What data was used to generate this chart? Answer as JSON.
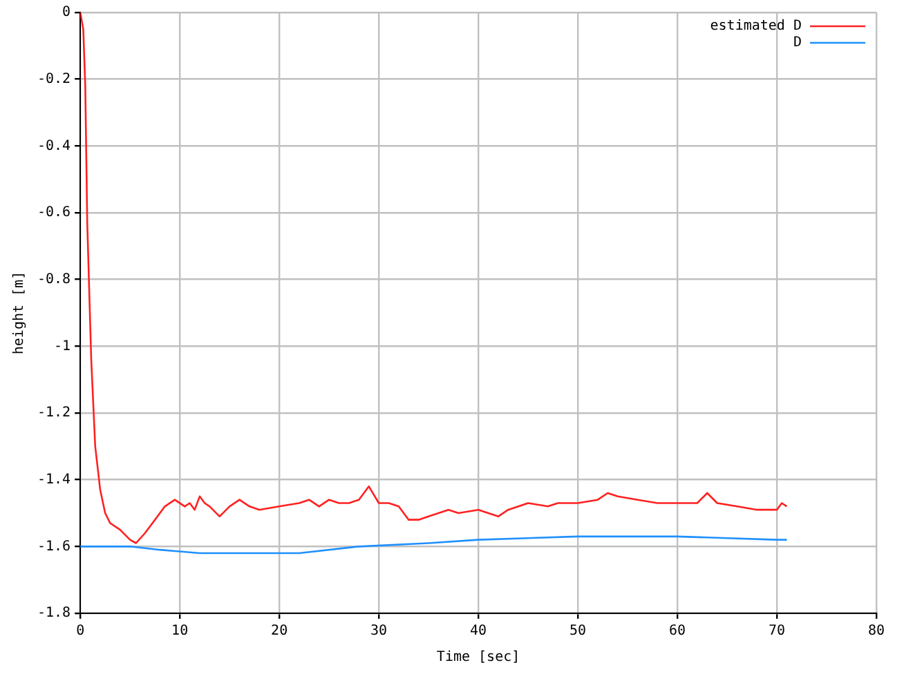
{
  "chart_data": {
    "type": "line",
    "xlabel": "Time [sec]",
    "ylabel": "height [m]",
    "xlim": [
      0,
      80
    ],
    "xticks": [
      0,
      10,
      20,
      30,
      40,
      50,
      60,
      70,
      80
    ],
    "ylim": [
      -1.8,
      0
    ],
    "yticks": [
      -1.8,
      -1.6,
      -1.4,
      -1.2,
      -1,
      -0.8,
      -0.6,
      -0.4,
      -0.2,
      0
    ],
    "grid": true,
    "legend": "top right",
    "marker": "none",
    "line_style": "solid",
    "series": [
      {
        "name": "estimated D",
        "color": "#ff2020",
        "x": [
          0,
          0.3,
          0.5,
          0.7,
          1.1,
          1.5,
          2,
          2.5,
          3,
          4,
          5,
          5.6,
          6.5,
          7.5,
          8.5,
          9.5,
          10.5,
          11,
          11.5,
          12,
          12.5,
          13,
          14,
          15,
          16,
          17,
          18,
          20,
          22,
          23,
          24,
          25,
          26,
          27,
          28,
          29,
          30,
          31,
          32,
          33,
          34,
          35,
          37,
          38,
          40,
          42,
          43,
          45,
          47,
          48,
          50,
          52,
          53,
          54,
          56,
          58,
          60,
          62,
          63,
          64,
          66,
          68,
          70,
          70.5,
          71
        ],
        "values": [
          0,
          -0.05,
          -0.22,
          -0.63,
          -1.04,
          -1.3,
          -1.43,
          -1.5,
          -1.53,
          -1.55,
          -1.58,
          -1.59,
          -1.56,
          -1.52,
          -1.48,
          -1.46,
          -1.48,
          -1.47,
          -1.49,
          -1.45,
          -1.47,
          -1.48,
          -1.51,
          -1.48,
          -1.46,
          -1.48,
          -1.49,
          -1.48,
          -1.47,
          -1.46,
          -1.48,
          -1.46,
          -1.47,
          -1.47,
          -1.46,
          -1.42,
          -1.47,
          -1.47,
          -1.48,
          -1.52,
          -1.52,
          -1.51,
          -1.49,
          -1.5,
          -1.49,
          -1.51,
          -1.49,
          -1.47,
          -1.48,
          -1.47,
          -1.47,
          -1.46,
          -1.44,
          -1.45,
          -1.46,
          -1.47,
          -1.47,
          -1.47,
          -1.44,
          -1.47,
          -1.48,
          -1.49,
          -1.49,
          -1.47,
          -1.48
        ]
      },
      {
        "name": "D",
        "color": "#1e90ff",
        "x": [
          0,
          5,
          8,
          12,
          22,
          28,
          35,
          40,
          50,
          60,
          65,
          70,
          71
        ],
        "values": [
          -1.6,
          -1.6,
          -1.61,
          -1.62,
          -1.62,
          -1.6,
          -1.59,
          -1.58,
          -1.57,
          -1.57,
          -1.575,
          -1.58,
          -1.58
        ]
      }
    ]
  }
}
